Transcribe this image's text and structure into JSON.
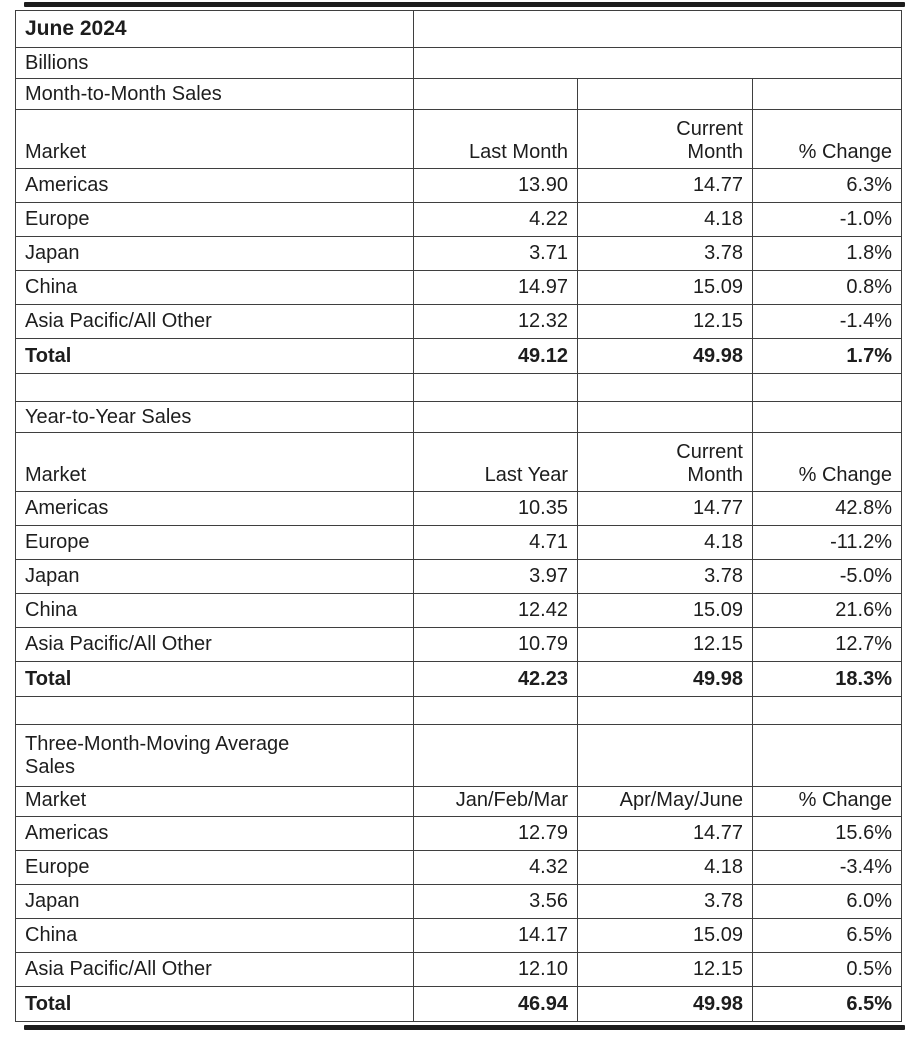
{
  "report": {
    "title": "June 2024",
    "unit_label": "Billions"
  },
  "styles": {
    "background": "#ffffff",
    "text_color": "#1d1d1d",
    "grid_border_color": "#3f3f3f",
    "thick_rule_color": "#1c1c1c"
  },
  "sections": [
    {
      "title": "Month-to-Month Sales",
      "two_line_title": false,
      "tall_header": true,
      "columns": [
        "Market",
        "Last Month",
        "Current\nMonth",
        "% Change"
      ],
      "rows": [
        {
          "market": "Americas",
          "v1": "13.90",
          "v2": "14.77",
          "change": "6.3%",
          "is_total": false
        },
        {
          "market": "Europe",
          "v1": "4.22",
          "v2": "4.18",
          "change": "-1.0%",
          "is_total": false
        },
        {
          "market": "Japan",
          "v1": "3.71",
          "v2": "3.78",
          "change": "1.8%",
          "is_total": false
        },
        {
          "market": "China",
          "v1": "14.97",
          "v2": "15.09",
          "change": "0.8%",
          "is_total": false
        },
        {
          "market": "Asia Pacific/All Other",
          "v1": "12.32",
          "v2": "12.15",
          "change": "-1.4%",
          "is_total": false
        },
        {
          "market": "Total",
          "v1": "49.12",
          "v2": "49.98",
          "change": "1.7%",
          "is_total": true
        }
      ]
    },
    {
      "title": "Year-to-Year Sales",
      "two_line_title": false,
      "tall_header": true,
      "columns": [
        "Market",
        "Last Year",
        "Current\nMonth",
        "% Change"
      ],
      "rows": [
        {
          "market": "Americas",
          "v1": "10.35",
          "v2": "14.77",
          "change": "42.8%",
          "is_total": false
        },
        {
          "market": "Europe",
          "v1": "4.71",
          "v2": "4.18",
          "change": "-11.2%",
          "is_total": false
        },
        {
          "market": "Japan",
          "v1": "3.97",
          "v2": "3.78",
          "change": "-5.0%",
          "is_total": false
        },
        {
          "market": "China",
          "v1": "12.42",
          "v2": "15.09",
          "change": "21.6%",
          "is_total": false
        },
        {
          "market": "Asia Pacific/All Other",
          "v1": "10.79",
          "v2": "12.15",
          "change": "12.7%",
          "is_total": false
        },
        {
          "market": "Total",
          "v1": "42.23",
          "v2": "49.98",
          "change": "18.3%",
          "is_total": true
        }
      ]
    },
    {
      "title": "Three-Month-Moving Average\nSales",
      "two_line_title": true,
      "tall_header": false,
      "columns": [
        "Market",
        "Jan/Feb/Mar",
        "Apr/May/June",
        "% Change"
      ],
      "rows": [
        {
          "market": "Americas",
          "v1": "12.79",
          "v2": "14.77",
          "change": "15.6%",
          "is_total": false
        },
        {
          "market": "Europe",
          "v1": "4.32",
          "v2": "4.18",
          "change": "-3.4%",
          "is_total": false
        },
        {
          "market": "Japan",
          "v1": "3.56",
          "v2": "3.78",
          "change": "6.0%",
          "is_total": false
        },
        {
          "market": "China",
          "v1": "14.17",
          "v2": "15.09",
          "change": "6.5%",
          "is_total": false
        },
        {
          "market": "Asia Pacific/All Other",
          "v1": "12.10",
          "v2": "12.15",
          "change": "0.5%",
          "is_total": false
        },
        {
          "market": "Total",
          "v1": "46.94",
          "v2": "49.98",
          "change": "6.5%",
          "is_total": true
        }
      ]
    }
  ]
}
